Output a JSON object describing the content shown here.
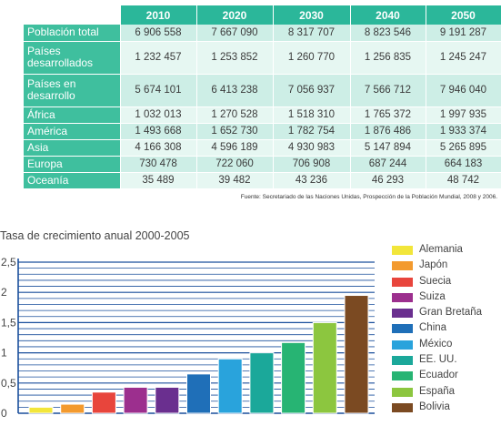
{
  "table": {
    "columns": [
      "2010",
      "2020",
      "2030",
      "2040",
      "2050"
    ],
    "rows": [
      {
        "label": "Población total",
        "values": [
          "6 906 558",
          "7 667 090",
          "8 317 707",
          "8 823 546",
          "9 191 287"
        ]
      },
      {
        "label": "Países desarrollados",
        "values": [
          "1 232 457",
          "1 253 852",
          "1 260 770",
          "1 256 835",
          "1 245 247"
        ]
      },
      {
        "label": "Países en desarrollo",
        "values": [
          "5 674 101",
          "6 413 238",
          "7 056 937",
          "7 566 712",
          "7 946 040"
        ]
      },
      {
        "label": "África",
        "values": [
          "1 032 013",
          "1 270 528",
          "1 518 310",
          "1 765 372",
          "1 997 935"
        ]
      },
      {
        "label": "América",
        "values": [
          "1 493 668",
          "1 652 730",
          "1 782 754",
          "1 876 486",
          "1 933 374"
        ]
      },
      {
        "label": "Asia",
        "values": [
          "4 166 308",
          "4 596 189",
          "4 930 983",
          "5 147 894",
          "5 265 895"
        ]
      },
      {
        "label": "Europa",
        "values": [
          "730 478",
          "722 060",
          "706 908",
          "687 244",
          "664 183"
        ]
      },
      {
        "label": "Oceanía",
        "values": [
          "35 489",
          "39 482",
          "43 236",
          "46 293",
          "48 742"
        ]
      }
    ],
    "source": "Fuente: Secretariado de las Naciones Unidas, Prospección de la Población Mundial, 2008 y 2006."
  },
  "chart_data": {
    "type": "bar",
    "title": "Tasa de crecimiento anual 2000-2005",
    "categories": [
      "Alemania",
      "Japón",
      "Suecia",
      "Suiza",
      "Gran Bretaña",
      "China",
      "México",
      "EE. UU.",
      "Ecuador",
      "España",
      "Bolivia"
    ],
    "values": [
      0.1,
      0.15,
      0.35,
      0.43,
      0.43,
      0.65,
      0.9,
      1.0,
      1.17,
      1.5,
      1.95
    ],
    "colors": [
      "#f2e63a",
      "#f39a2e",
      "#e8453c",
      "#9c2f8e",
      "#6a2f8f",
      "#1f6fb8",
      "#29a3dc",
      "#1ba89a",
      "#27b473",
      "#8cc63f",
      "#7b4a22"
    ],
    "ylim": [
      0,
      2.5
    ],
    "yticks": [
      "0",
      "0,5",
      "1",
      "1,5",
      "2",
      "2,5"
    ],
    "grid": true,
    "legend": "right"
  }
}
